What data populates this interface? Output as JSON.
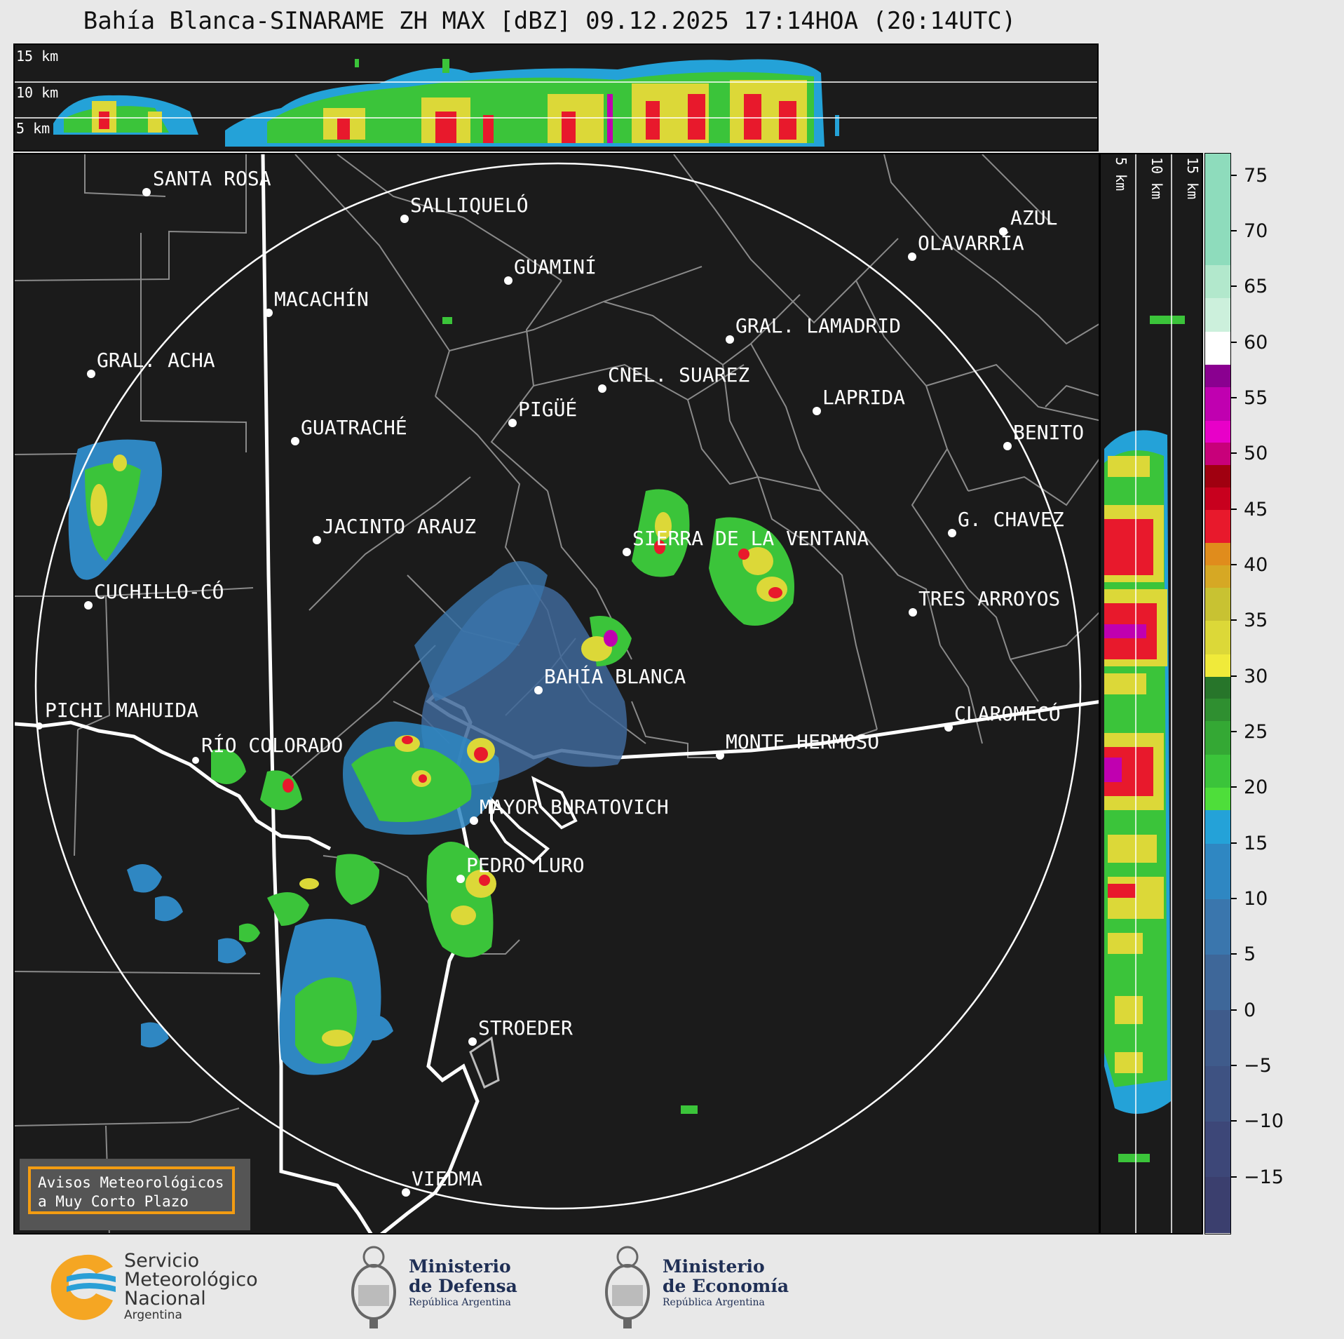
{
  "title": "Bahía Blanca-SINARAME ZH MAX [dBZ] 09.12.2025 17:14HOA (20:14UTC)",
  "top_panel_heights": [
    "15 km",
    "10 km",
    "5 km"
  ],
  "side_panel_heights": [
    "5 km",
    "10 km",
    "15 km"
  ],
  "colorbar": {
    "unit": "dBZ",
    "ticks": [
      "75",
      "70",
      "65",
      "60",
      "55",
      "50",
      "45",
      "40",
      "35",
      "30",
      "25",
      "20",
      "15",
      "10",
      "5",
      "0",
      "−5",
      "−10",
      "−15"
    ],
    "range": [
      -20,
      77
    ],
    "segments": [
      {
        "from": -20,
        "to": -15,
        "color": "#3b3f6e"
      },
      {
        "from": -15,
        "to": -10,
        "color": "#3d4778"
      },
      {
        "from": -10,
        "to": -5,
        "color": "#3e5282"
      },
      {
        "from": -5,
        "to": 0,
        "color": "#3f5b8b"
      },
      {
        "from": 0,
        "to": 5,
        "color": "#3e6799"
      },
      {
        "from": 5,
        "to": 10,
        "color": "#3a76ad"
      },
      {
        "from": 10,
        "to": 15,
        "color": "#2f87c2"
      },
      {
        "from": 15,
        "to": 18,
        "color": "#24a2d8"
      },
      {
        "from": 18,
        "to": 20,
        "color": "#4ede3a"
      },
      {
        "from": 20,
        "to": 23,
        "color": "#3bc43a"
      },
      {
        "from": 23,
        "to": 26,
        "color": "#34a834"
      },
      {
        "from": 26,
        "to": 28,
        "color": "#2f8f30"
      },
      {
        "from": 28,
        "to": 30,
        "color": "#27752a"
      },
      {
        "from": 30,
        "to": 32,
        "color": "#f0ea3a"
      },
      {
        "from": 32,
        "to": 35,
        "color": "#dcd838"
      },
      {
        "from": 35,
        "to": 38,
        "color": "#c8c232"
      },
      {
        "from": 38,
        "to": 40,
        "color": "#d6a824"
      },
      {
        "from": 40,
        "to": 42,
        "color": "#e08c1c"
      },
      {
        "from": 42,
        "to": 45,
        "color": "#e8192c"
      },
      {
        "from": 45,
        "to": 47,
        "color": "#c8001e"
      },
      {
        "from": 47,
        "to": 49,
        "color": "#a00010"
      },
      {
        "from": 49,
        "to": 51,
        "color": "#c8007a"
      },
      {
        "from": 51,
        "to": 53,
        "color": "#e800c8"
      },
      {
        "from": 53,
        "to": 56,
        "color": "#c000b0"
      },
      {
        "from": 56,
        "to": 58,
        "color": "#8a0090"
      },
      {
        "from": 58,
        "to": 61,
        "color": "#ffffff"
      },
      {
        "from": 61,
        "to": 64,
        "color": "#ccf0dc"
      },
      {
        "from": 64,
        "to": 67,
        "color": "#b2e8cc"
      },
      {
        "from": 67,
        "to": 77,
        "color": "#8edcbc"
      }
    ]
  },
  "map": {
    "range_ring": "white",
    "cities": [
      {
        "name": "SANTA ROSA"
      },
      {
        "name": "SALLIQUELÓ"
      },
      {
        "name": "GUAMINÍ"
      },
      {
        "name": "MACACHÍN"
      },
      {
        "name": "AZUL"
      },
      {
        "name": "OLAVARRÍA"
      },
      {
        "name": "GRAL. LAMADRID"
      },
      {
        "name": "GRAL. ACHA"
      },
      {
        "name": "CNEL. SUAREZ"
      },
      {
        "name": "LAPRIDA"
      },
      {
        "name": "PIGÜÉ"
      },
      {
        "name": "GUATRACHÉ"
      },
      {
        "name": "BENITO"
      },
      {
        "name": "JACINTO ARAUZ"
      },
      {
        "name": "SIERRA DE LA VENTANA"
      },
      {
        "name": "G. CHAVEZ"
      },
      {
        "name": "CUCHILLO-CÓ"
      },
      {
        "name": "TRES ARROYOS"
      },
      {
        "name": "BAHÍA BLANCA"
      },
      {
        "name": "PICHI MAHUIDA"
      },
      {
        "name": "CLAROMECÓ"
      },
      {
        "name": "RÍO COLORADO"
      },
      {
        "name": "MONTE HERMOSO"
      },
      {
        "name": "MAYOR BURATOVICH"
      },
      {
        "name": "PEDRO LURO"
      },
      {
        "name": "STROEDER"
      },
      {
        "name": "VIEDMA"
      }
    ]
  },
  "notice": {
    "line1": "Avisos Meteorológicos",
    "line2": "a Muy Corto Plazo"
  },
  "logos": {
    "smn": {
      "line1": "Servicio",
      "line2": "Meteorológico",
      "line3": "Nacional",
      "line4": "Argentina"
    },
    "defensa": {
      "line1": "Ministerio",
      "line2": "de Defensa",
      "line3": "República Argentina"
    },
    "economia": {
      "line1": "Ministerio",
      "line2": "de Economía",
      "line3": "República Argentina"
    }
  }
}
